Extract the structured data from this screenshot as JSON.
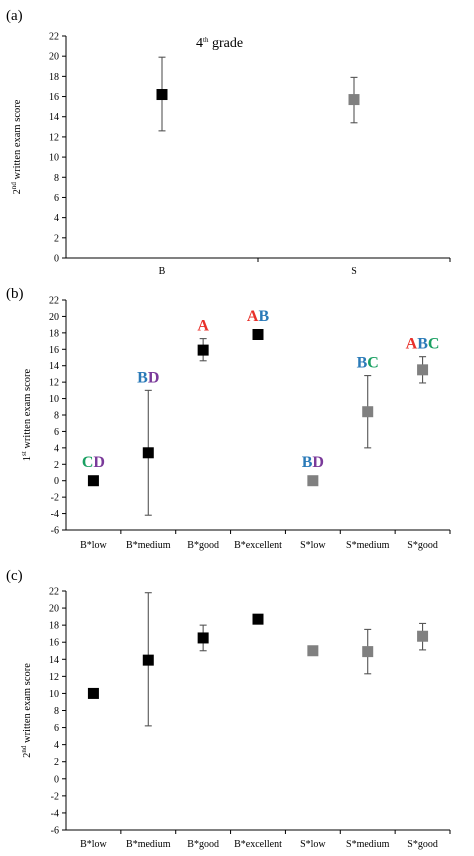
{
  "colors": {
    "B": "#000000",
    "S": "#808080",
    "A": "#e8302a",
    "B_letter": "#2a7ab8",
    "C": "#1aa062",
    "D": "#7a3a9a"
  },
  "chart_data": [
    {
      "panel": "(a)",
      "type": "scatter",
      "title": "4th grade",
      "title_base": "4",
      "title_sup": "th",
      "title_rest": " grade",
      "ylabel_pre": "2",
      "ylabel_sup": "nd",
      "ylabel_rest": " written exam score",
      "ylim": [
        0,
        22
      ],
      "ystep": 2,
      "categories": [
        "B",
        "S"
      ],
      "points": [
        {
          "category": "B",
          "y": 16.2,
          "err_low": 12.6,
          "err_high": 19.9,
          "group": "B"
        },
        {
          "category": "S",
          "y": 15.7,
          "err_low": 13.4,
          "err_high": 17.9,
          "group": "S"
        }
      ]
    },
    {
      "panel": "(b)",
      "type": "scatter",
      "ylabel_pre": "1",
      "ylabel_sup": "st",
      "ylabel_rest": " written exam score",
      "ylim": [
        -6,
        22
      ],
      "ystep": 2,
      "categories": [
        "B*low",
        "B*medium",
        "B*good",
        "B*excellent",
        "S*low",
        "S*medium",
        "S*good"
      ],
      "points": [
        {
          "category": "B*low",
          "y": 0.0,
          "err_low": null,
          "err_high": null,
          "group": "B",
          "annotation": "CD"
        },
        {
          "category": "B*medium",
          "y": 3.4,
          "err_low": -4.2,
          "err_high": 11.0,
          "group": "B",
          "annotation": "BD"
        },
        {
          "category": "B*good",
          "y": 15.9,
          "err_low": 14.6,
          "err_high": 17.3,
          "group": "B",
          "annotation": "A"
        },
        {
          "category": "B*excellent",
          "y": 17.8,
          "err_low": null,
          "err_high": null,
          "group": "B",
          "annotation": "AB"
        },
        {
          "category": "S*low",
          "y": 0.0,
          "err_low": null,
          "err_high": null,
          "group": "S",
          "annotation": "BD"
        },
        {
          "category": "S*medium",
          "y": 8.4,
          "err_low": 4.0,
          "err_high": 12.8,
          "group": "S",
          "annotation": "BC"
        },
        {
          "category": "S*good",
          "y": 13.5,
          "err_low": 11.9,
          "err_high": 15.1,
          "group": "S",
          "annotation": "ABC"
        }
      ]
    },
    {
      "panel": "(c)",
      "type": "scatter",
      "ylabel_pre": "2",
      "ylabel_sup": "nd",
      "ylabel_rest": " written exam score",
      "ylim": [
        -6,
        22
      ],
      "ystep": 2,
      "categories": [
        "B*low",
        "B*medium",
        "B*good",
        "B*excellent",
        "S*low",
        "S*medium",
        "S*good"
      ],
      "points": [
        {
          "category": "B*low",
          "y": 10.0,
          "err_low": null,
          "err_high": null,
          "group": "B"
        },
        {
          "category": "B*medium",
          "y": 13.9,
          "err_low": 6.2,
          "err_high": 21.8,
          "group": "B"
        },
        {
          "category": "B*good",
          "y": 16.5,
          "err_low": 15.0,
          "err_high": 18.0,
          "group": "B"
        },
        {
          "category": "B*excellent",
          "y": 18.7,
          "err_low": null,
          "err_high": null,
          "group": "B"
        },
        {
          "category": "S*low",
          "y": 15.0,
          "err_low": null,
          "err_high": null,
          "group": "S"
        },
        {
          "category": "S*medium",
          "y": 14.9,
          "err_low": 12.3,
          "err_high": 17.5,
          "group": "S"
        },
        {
          "category": "S*good",
          "y": 16.7,
          "err_low": 15.1,
          "err_high": 18.2,
          "group": "S"
        }
      ]
    }
  ]
}
